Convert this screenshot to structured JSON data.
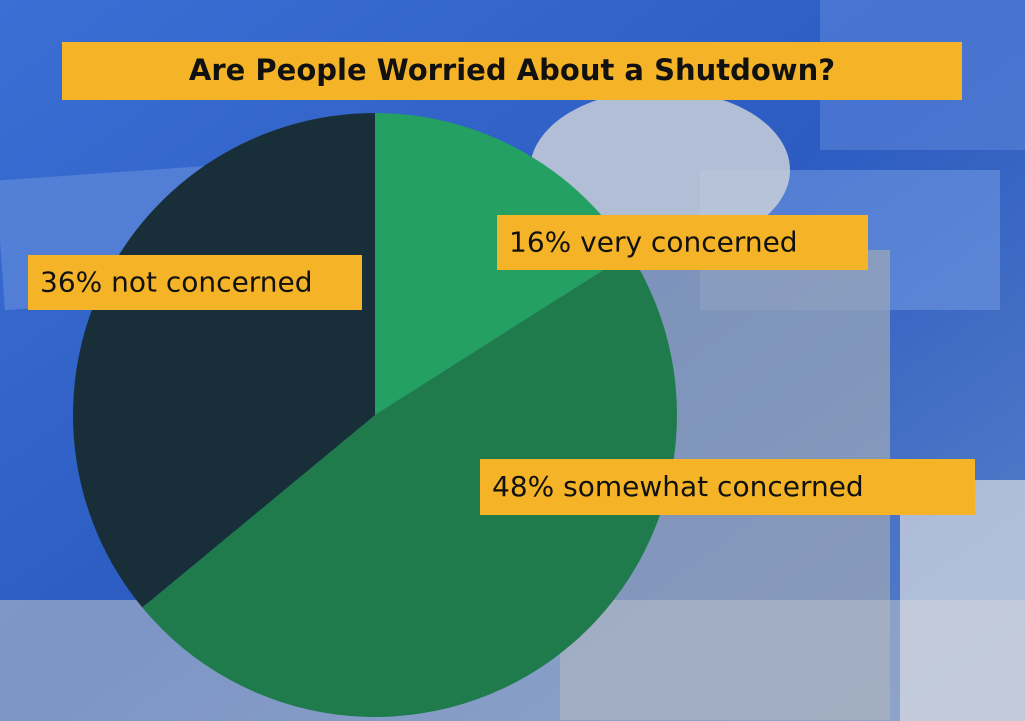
{
  "chart_data": {
    "type": "pie",
    "title": "Are People Worried About a Shutdown?",
    "categories": [
      "very concerned",
      "somewhat concerned",
      "not concerned"
    ],
    "values": [
      16,
      48,
      36
    ],
    "value_labels": [
      "16%",
      "48%",
      "36%"
    ],
    "colors": [
      "#24a062",
      "#1f7b4b",
      "#182f3a"
    ]
  }
}
